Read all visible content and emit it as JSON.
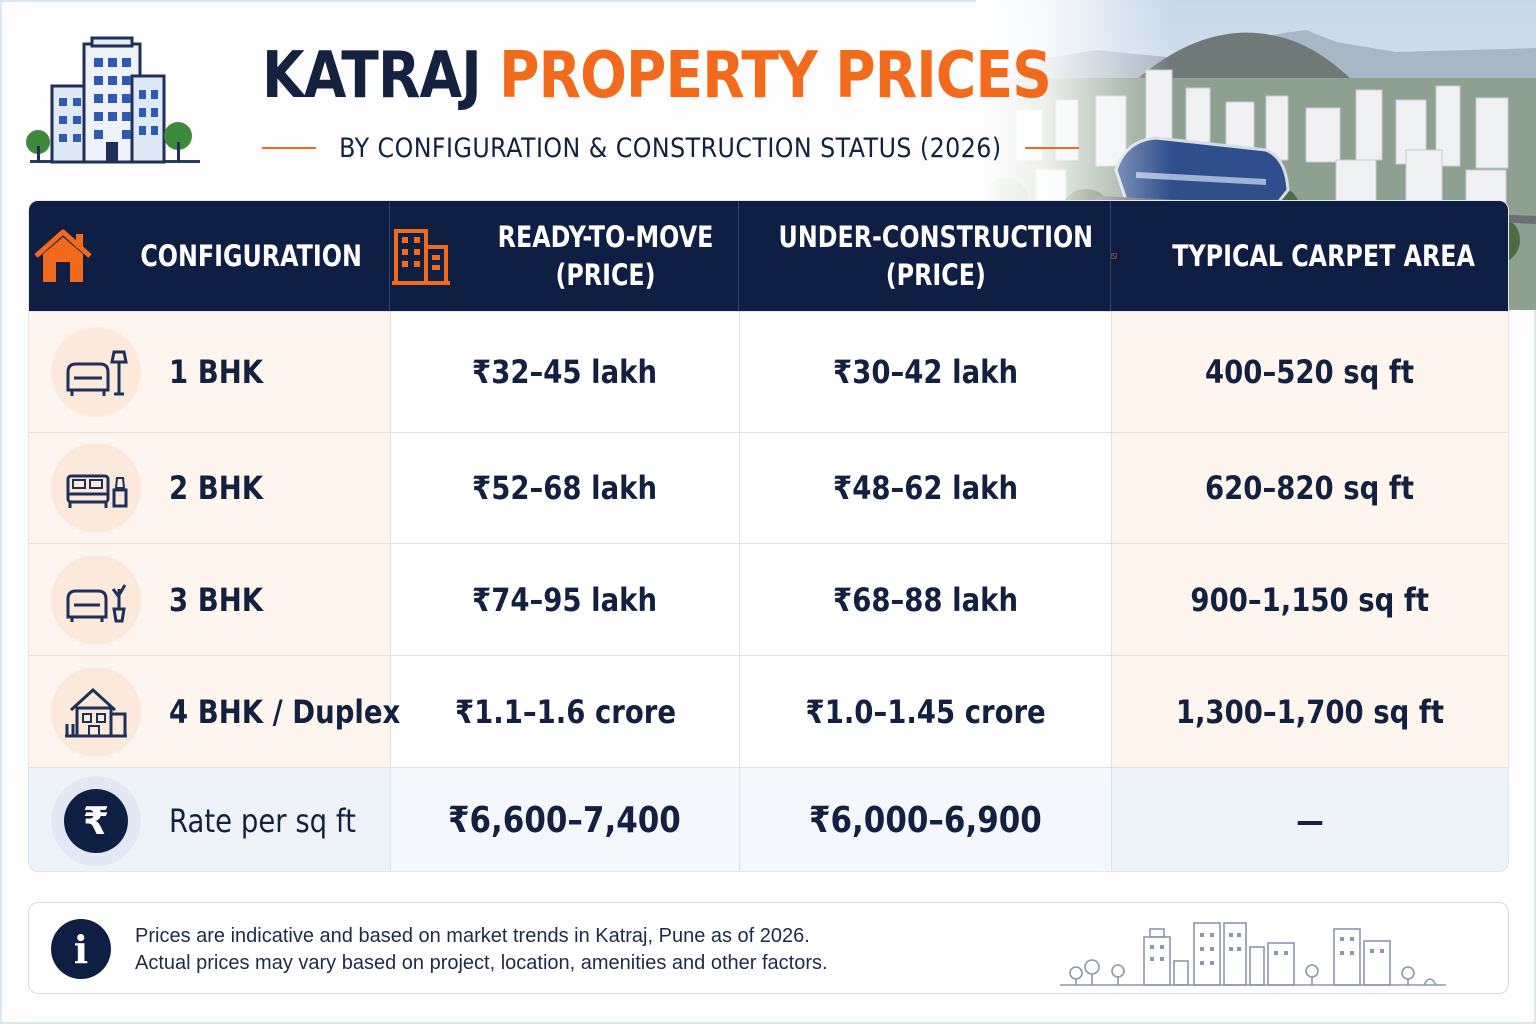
{
  "header": {
    "title_part1": "KATRAJ",
    "title_part2": "PROPERTY PRICES",
    "subtitle": "BY CONFIGURATION & CONSTRUCTION STATUS (2026)"
  },
  "table": {
    "columns": [
      {
        "icon": "house-icon",
        "line1": "CONFIGURATION",
        "line2": ""
      },
      {
        "icon": "building-icon",
        "line1": "READY-TO-MOVE",
        "line2": "(PRICE)"
      },
      {
        "icon": "crane-icon",
        "line1": "UNDER-CONSTRUCTION",
        "line2": "(PRICE)"
      },
      {
        "icon": "floor-plan-icon",
        "line1": "TYPICAL CARPET AREA",
        "line2": ""
      }
    ],
    "rows": [
      {
        "icon": "sofa-lamp-icon",
        "config": "1 BHK",
        "ready": "₹32–45 lakh",
        "under": "₹30–42 lakh",
        "area": "400–520 sq ft"
      },
      {
        "icon": "bed-icon",
        "config": "2 BHK",
        "ready": "₹52–68 lakh",
        "under": "₹48–62 lakh",
        "area": "620–820 sq ft"
      },
      {
        "icon": "sofa-plant-icon",
        "config": "3 BHK",
        "ready": "₹74–95 lakh",
        "under": "₹68–88 lakh",
        "area": "900–1,150 sq ft"
      },
      {
        "icon": "duplex-house-icon",
        "config": "4 BHK / Duplex",
        "ready": "₹1.1–1.6 crore",
        "under": "₹1.0–1.45 crore",
        "area": "1,300–1,700 sq ft"
      }
    ],
    "rate_row": {
      "icon": "rupee-icon",
      "symbol": "₹",
      "label": "Rate per sq ft",
      "ready": "₹6,600–7,400",
      "under": "₹6,000–6,900",
      "area": "—"
    }
  },
  "note": {
    "icon": "info-icon",
    "symbol": "i",
    "line1": "Prices are indicative and based on market trends in Katraj, Pune as of 2026.",
    "line2": "Actual prices may vary based on project, location, amenities and other factors."
  },
  "colors": {
    "navy": "#0f1f44",
    "orange": "#f26a1b"
  }
}
